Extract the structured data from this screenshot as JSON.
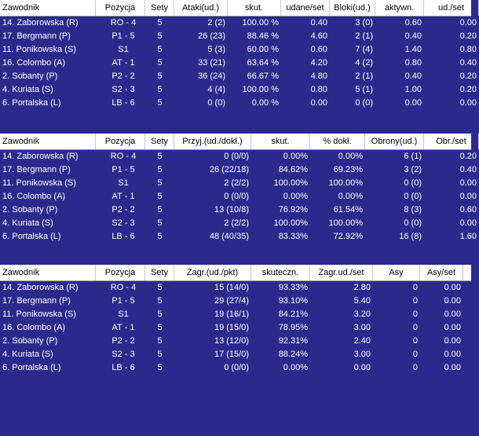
{
  "tables": [
    {
      "columns": [
        "Zawodnik",
        "Pozycja",
        "Sety",
        "Ataki(ud.)",
        "skut.",
        "udane/set",
        "Bloki(ud.)",
        "aktywn.",
        "ud./set"
      ],
      "rows": [
        [
          "14. Zaborowska (R)",
          "RO - 4",
          "5",
          "2 (2)",
          "100.00 %",
          "0.40",
          "3 (0)",
          "0.60",
          "0.00"
        ],
        [
          "17. Bergmann (P)",
          "P1 - 5",
          "5",
          "26 (23)",
          "88.46 %",
          "4.60",
          "2 (1)",
          "0.40",
          "0.20"
        ],
        [
          "11. Ponikowska (S)",
          "S1",
          "5",
          "5 (3)",
          "60.00 %",
          "0.60",
          "7 (4)",
          "1.40",
          "0.80"
        ],
        [
          "16. Colombo (A)",
          "AT - 1",
          "5",
          "33 (21)",
          "63.64 %",
          "4.20",
          "4 (2)",
          "0.80",
          "0.40"
        ],
        [
          "2. Sobanty (P)",
          "P2 - 2",
          "5",
          "36 (24)",
          "66.67 %",
          "4.80",
          "2 (1)",
          "0.40",
          "0.20"
        ],
        [
          "4. Kuriata (S)",
          "S2 - 3",
          "5",
          "4 (4)",
          "100.00 %",
          "0.80",
          "5 (1)",
          "1.00",
          "0.20"
        ],
        [
          "6. Portalska (L)",
          "LB - 6",
          "5",
          "0 (0)",
          "0.00 %",
          "0.00",
          "0 (0)",
          "0.00",
          "0.00"
        ]
      ]
    },
    {
      "columns": [
        "Zawodnik",
        "Pozycja",
        "Sety",
        "Przyj.(ud./dokł.)",
        "skut.",
        "% dokł.",
        "Obrony(ud.)",
        "Obr./set"
      ],
      "rows": [
        [
          "14. Zaborowska (R)",
          "RO - 4",
          "5",
          "0 (0/0)",
          "0.00%",
          "0.00%",
          "6 (1)",
          "0.20"
        ],
        [
          "17. Bergmann (P)",
          "P1 - 5",
          "5",
          "26 (22/18)",
          "84.62%",
          "69.23%",
          "3 (2)",
          "0.40"
        ],
        [
          "11. Ponikowska (S)",
          "S1",
          "5",
          "2 (2/2)",
          "100.00%",
          "100.00%",
          "0 (0)",
          "0.00"
        ],
        [
          "16. Colombo (A)",
          "AT - 1",
          "5",
          "0 (0/0)",
          "0.00%",
          "0.00%",
          "0 (0)",
          "0.00"
        ],
        [
          "2. Sobanty (P)",
          "P2 - 2",
          "5",
          "13 (10/8)",
          "76.92%",
          "61.54%",
          "8 (3)",
          "0.60"
        ],
        [
          "4. Kuriata (S)",
          "S2 - 3",
          "5",
          "2 (2/2)",
          "100.00%",
          "100.00%",
          "0 (0)",
          "0.00"
        ],
        [
          "6. Portalska (L)",
          "LB - 6",
          "5",
          "48 (40/35)",
          "83.33%",
          "72.92%",
          "16 (8)",
          "1.60"
        ]
      ]
    },
    {
      "columns": [
        "Zawodnik",
        "Pozycja",
        "Sety",
        "Zagr.(ud./pkt)",
        "skuteczn.",
        "Zagr.ud./set",
        "Asy",
        "Asy/set"
      ],
      "rows": [
        [
          "14. Zaborowska (R)",
          "RO - 4",
          "5",
          "15 (14/0)",
          "93.33%",
          "2.80",
          "0",
          "0.00"
        ],
        [
          "17. Bergmann (P)",
          "P1 - 5",
          "5",
          "29 (27/4)",
          "93.10%",
          "5.40",
          "0",
          "0.00"
        ],
        [
          "11. Ponikowska (S)",
          "S1",
          "5",
          "19 (16/1)",
          "84.21%",
          "3.20",
          "0",
          "0.00"
        ],
        [
          "16. Colombo (A)",
          "AT - 1",
          "5",
          "19 (15/0)",
          "78.95%",
          "3.00",
          "0",
          "0.00"
        ],
        [
          "2. Sobanty (P)",
          "P2 - 2",
          "5",
          "13 (12/0)",
          "92.31%",
          "2.40",
          "0",
          "0.00"
        ],
        [
          "4. Kuriata (S)",
          "S2 - 3",
          "5",
          "17 (15/0)",
          "88.24%",
          "3.00",
          "0",
          "0.00"
        ],
        [
          "6. Portalska (L)",
          "LB - 6",
          "5",
          "0 (0/0)",
          "0.00%",
          "0.00",
          "0",
          "0.00"
        ]
      ]
    }
  ]
}
